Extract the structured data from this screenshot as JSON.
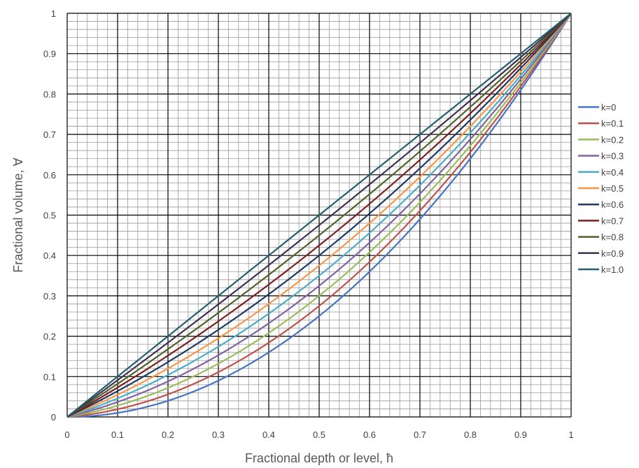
{
  "chart_data": {
    "type": "line",
    "title": "",
    "xlabel": "Fractional depth or level, ħ",
    "ylabel": "Fractional volume, ∀",
    "xlim": [
      0,
      1
    ],
    "ylim": [
      0,
      1
    ],
    "x_ticks": [
      "0",
      "0.1",
      "0.2",
      "0.3",
      "0.4",
      "0.5",
      "0.6",
      "0.7",
      "0.8",
      "0.9",
      "1"
    ],
    "y_ticks": [
      "0",
      "0.1",
      "0.2",
      "0.3",
      "0.4",
      "0.5",
      "0.6",
      "0.7",
      "0.8",
      "0.9",
      "1"
    ],
    "grid": {
      "major": true,
      "minor": true
    },
    "legend_position": "right",
    "x": [
      0,
      0.05,
      0.1,
      0.15,
      0.2,
      0.25,
      0.3,
      0.35,
      0.4,
      0.45,
      0.5,
      0.55,
      0.6,
      0.65,
      0.7,
      0.75,
      0.8,
      0.85,
      0.9,
      0.95,
      1
    ],
    "series": [
      {
        "name": "k=0",
        "k": 0.0,
        "color": "#4472C4"
      },
      {
        "name": "k=0.1",
        "k": 0.1,
        "color": "#C0504D"
      },
      {
        "name": "k=0.2",
        "k": 0.2,
        "color": "#9BBB59"
      },
      {
        "name": "k=0.3",
        "k": 0.3,
        "color": "#8064A2"
      },
      {
        "name": "k=0.4",
        "k": 0.4,
        "color": "#4BACC6"
      },
      {
        "name": "k=0.5",
        "k": 0.5,
        "color": "#F79646"
      },
      {
        "name": "k=0.6",
        "k": 0.6,
        "color": "#1F3864"
      },
      {
        "name": "k=0.7",
        "k": 0.7,
        "color": "#7B1F1F"
      },
      {
        "name": "k=0.8",
        "k": 0.8,
        "color": "#4F6228"
      },
      {
        "name": "k=0.9",
        "k": 0.9,
        "color": "#3F3151"
      },
      {
        "name": "k=1.0",
        "k": 1.0,
        "color": "#215E6E"
      }
    ]
  }
}
